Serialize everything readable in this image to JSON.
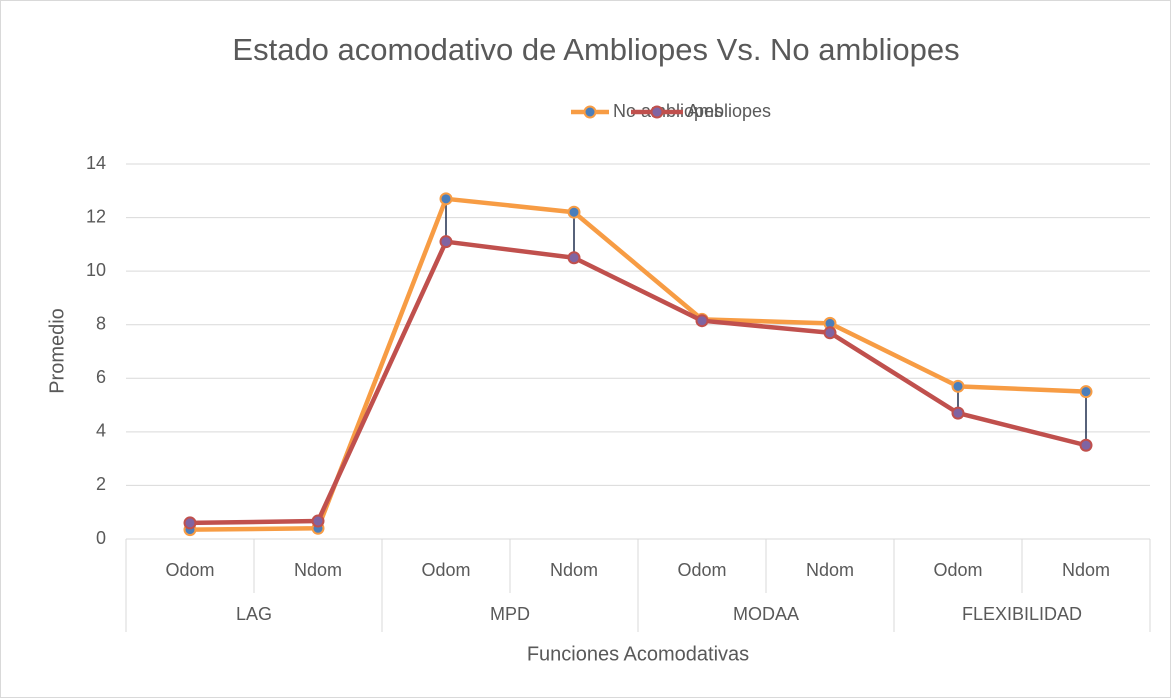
{
  "chart_data": {
    "type": "line",
    "title": "Estado acomodativo de Ambliopes Vs. No ambliopes",
    "x_label": "Funciones Acomodativas",
    "y_label": "Promedio",
    "categories": [
      "Odom",
      "Ndom",
      "Odom",
      "Ndom",
      "Odom",
      "Ndom",
      "Odom",
      "Ndom"
    ],
    "groups": [
      "LAG",
      "MPD",
      "MODAA",
      "FLEXIBILIDAD"
    ],
    "series": [
      {
        "name": "No ambliopes",
        "color": "#f79c44",
        "marker_color": "#4a7ebb",
        "values": [
          0.35,
          0.4,
          12.7,
          12.2,
          8.2,
          8.05,
          5.7,
          5.5
        ]
      },
      {
        "name": "Ambliopes",
        "color": "#c0504d",
        "marker_color": "#8064a2",
        "values": [
          0.6,
          0.67,
          11.1,
          10.5,
          8.15,
          7.7,
          4.7,
          3.5
        ]
      }
    ],
    "ylim": [
      0,
      14
    ],
    "yticks": [
      0,
      2,
      4,
      6,
      8,
      10,
      12,
      14
    ],
    "grid": true,
    "high_low_lines": true,
    "high_low_color": "#1f2d4d",
    "legend": "top"
  }
}
